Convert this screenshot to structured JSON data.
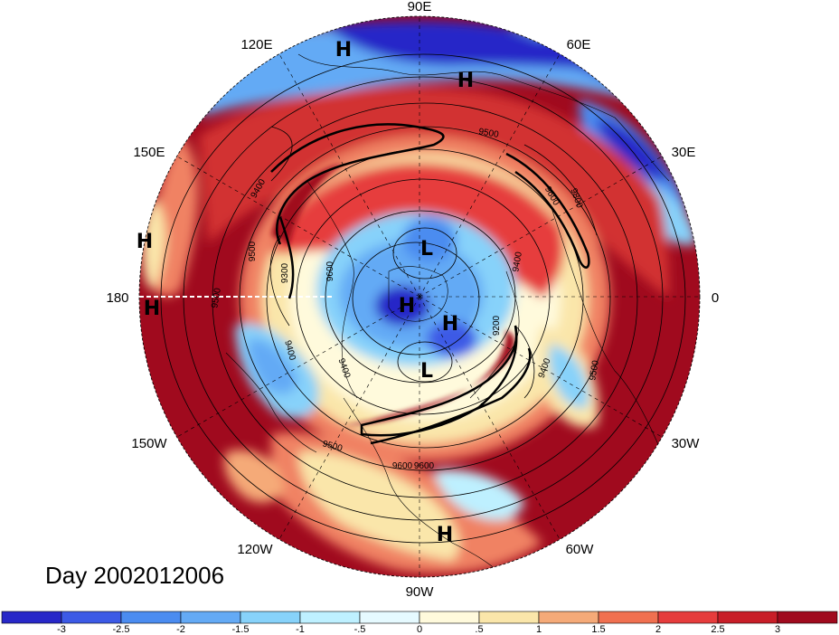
{
  "title": "Day 2002012006",
  "longitude_labels": [
    "90E",
    "60E",
    "30E",
    "0",
    "30W",
    "60W",
    "90W",
    "120W",
    "150W",
    "180",
    "150E",
    "120E"
  ],
  "pressure_centers": [
    {
      "label": "H"
    },
    {
      "label": "H"
    },
    {
      "label": "H"
    },
    {
      "label": "H"
    },
    {
      "label": "L"
    },
    {
      "label": "H"
    },
    {
      "label": "H"
    },
    {
      "label": "L"
    },
    {
      "label": "H"
    }
  ],
  "contour_labels": [
    "9500",
    "9600",
    "9400",
    "9500",
    "9500",
    "9300",
    "9600",
    "9200",
    "9400",
    "9400",
    "9400",
    "9500",
    "9600",
    "9500",
    "9400",
    "9800",
    "9600"
  ],
  "colorbar": {
    "ticks": [
      "-3",
      "-2.5",
      "-2",
      "-1.5",
      "-1",
      "-.5",
      "0",
      ".5",
      "1",
      "1.5",
      "2",
      "2.5",
      "3"
    ],
    "colors": [
      "#2828c8",
      "#3c5ae6",
      "#4b8cf0",
      "#64aaf5",
      "#87d2fa",
      "#bef0ff",
      "#e6faff",
      "#fffadc",
      "#fae6aa",
      "#f5aa78",
      "#f07050",
      "#e63c3c",
      "#c81e28",
      "#a00a1e"
    ]
  },
  "colors": {
    "ring_dark_red": "#a00a1e",
    "red": "#d23232",
    "light_red": "#f08264",
    "blue": "#4b8cf0",
    "dark_blue": "#2828c8",
    "light_blue": "#bef0ff"
  }
}
